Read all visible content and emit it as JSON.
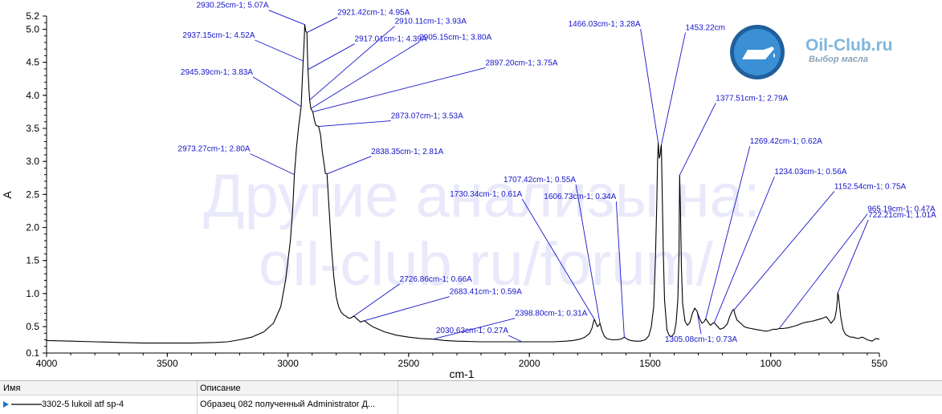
{
  "chart_data": {
    "type": "line",
    "title": "",
    "xlabel": "cm-1",
    "ylabel": "A",
    "xlim": [
      4000,
      550
    ],
    "ylim": [
      0.1,
      5.2
    ],
    "x_reversed": true,
    "x_ticks": [
      4000,
      3500,
      3000,
      2500,
      2000,
      1500,
      1000,
      550
    ],
    "y_ticks": [
      0.1,
      0.5,
      1.0,
      1.5,
      2.0,
      2.5,
      3.0,
      3.5,
      4.0,
      4.5,
      5.0,
      5.2
    ],
    "y_tick_labels": [
      "0.1",
      "0.5",
      "1.0",
      "1.5",
      "2.0",
      "2.5",
      "3.0",
      "3.5",
      "4.0",
      "4.5",
      "5.0",
      "5.2"
    ],
    "grid": false,
    "series": [
      {
        "name": "3302-5 lukoil atf sp-4",
        "color": "#000000",
        "x": [
          4000,
          3900,
          3800,
          3700,
          3600,
          3500,
          3400,
          3300,
          3250,
          3200,
          3150,
          3100,
          3060,
          3030,
          3010,
          2990,
          2980,
          2973.27,
          2965,
          2955,
          2945.39,
          2937.15,
          2933,
          2930.25,
          2926,
          2921.42,
          2919,
          2917.01,
          2913,
          2910.11,
          2907,
          2905.15,
          2900,
          2897.2,
          2890,
          2885,
          2880,
          2873.07,
          2865,
          2858,
          2850,
          2845,
          2838.35,
          2830,
          2820,
          2810,
          2800,
          2790,
          2780,
          2770,
          2760,
          2750,
          2740,
          2726.86,
          2715,
          2700,
          2683.41,
          2670,
          2650,
          2600,
          2550,
          2500,
          2450,
          2398.8,
          2350,
          2300,
          2200,
          2100,
          2030.63,
          1950,
          1900,
          1850,
          1820,
          1790,
          1770,
          1750,
          1740,
          1735,
          1730.34,
          1725,
          1718,
          1712,
          1707.42,
          1700,
          1690,
          1680,
          1660,
          1640,
          1620,
          1606.73,
          1595,
          1580,
          1560,
          1540,
          1520,
          1505,
          1495,
          1485,
          1478,
          1472,
          1469,
          1466.03,
          1462,
          1458,
          1455.5,
          1453.22,
          1450,
          1445,
          1440,
          1430,
          1420,
          1410,
          1400,
          1392,
          1385,
          1380,
          1377.51,
          1374,
          1370,
          1365,
          1355,
          1345,
          1335,
          1325,
          1315,
          1305.08,
          1295,
          1285,
          1275,
          1269.42,
          1262,
          1250,
          1240,
          1234.03,
          1225,
          1210,
          1195,
          1180,
          1170,
          1160,
          1155,
          1152.54,
          1148,
          1140,
          1125,
          1110,
          1095,
          1080,
          1065,
          1050,
          1035,
          1020,
          1005,
          990,
          975,
          965.19,
          950,
          930,
          910,
          890,
          870,
          850,
          830,
          810,
          790,
          770,
          750,
          735,
          728,
          724,
          722.21,
          720,
          716,
          710,
          700,
          690,
          680,
          670,
          660,
          640,
          620,
          600,
          580,
          565,
          550
        ],
        "y": [
          0.29,
          0.28,
          0.27,
          0.26,
          0.25,
          0.25,
          0.25,
          0.26,
          0.27,
          0.3,
          0.34,
          0.42,
          0.55,
          0.8,
          1.2,
          1.8,
          2.3,
          2.8,
          3.2,
          3.55,
          3.83,
          4.52,
          4.8,
          5.07,
          4.97,
          4.95,
          4.6,
          4.39,
          4.1,
          3.93,
          3.85,
          3.8,
          3.77,
          3.75,
          3.62,
          3.55,
          3.54,
          3.53,
          3.4,
          3.15,
          2.95,
          2.82,
          2.81,
          2.3,
          1.7,
          1.25,
          0.95,
          0.8,
          0.72,
          0.68,
          0.66,
          0.63,
          0.63,
          0.66,
          0.62,
          0.57,
          0.59,
          0.55,
          0.5,
          0.42,
          0.37,
          0.34,
          0.32,
          0.31,
          0.29,
          0.28,
          0.27,
          0.27,
          0.27,
          0.27,
          0.27,
          0.28,
          0.29,
          0.31,
          0.34,
          0.4,
          0.48,
          0.56,
          0.61,
          0.56,
          0.5,
          0.52,
          0.55,
          0.45,
          0.36,
          0.32,
          0.3,
          0.3,
          0.31,
          0.34,
          0.31,
          0.29,
          0.28,
          0.28,
          0.3,
          0.36,
          0.5,
          0.8,
          1.5,
          2.4,
          3.0,
          3.28,
          3.05,
          3.1,
          3.2,
          3.25,
          2.6,
          1.6,
          0.9,
          0.45,
          0.36,
          0.35,
          0.4,
          0.55,
          0.9,
          1.6,
          2.79,
          2.3,
          1.4,
          0.85,
          0.58,
          0.52,
          0.56,
          0.7,
          0.78,
          0.73,
          0.62,
          0.55,
          0.58,
          0.62,
          0.58,
          0.52,
          0.55,
          0.56,
          0.52,
          0.46,
          0.48,
          0.54,
          0.65,
          0.73,
          0.76,
          0.75,
          0.68,
          0.6,
          0.55,
          0.5,
          0.48,
          0.47,
          0.46,
          0.45,
          0.44,
          0.43,
          0.44,
          0.46,
          0.46,
          0.47,
          0.47,
          0.48,
          0.5,
          0.52,
          0.55,
          0.57,
          0.58,
          0.6,
          0.62,
          0.65,
          0.55,
          0.62,
          0.75,
          0.9,
          1.01,
          0.98,
          0.85,
          0.65,
          0.45,
          0.38,
          0.36,
          0.34,
          0.34,
          0.32,
          0.34,
          0.3,
          0.28,
          0.32,
          0.31
        ]
      }
    ],
    "annotations": [
      {
        "label": "2930.25cm-1; 5.07A",
        "x": 2930.25,
        "y": 5.07,
        "dx": -45,
        "dy": -18
      },
      {
        "label": "2921.42cm-1; 4.95A",
        "x": 2921.42,
        "y": 4.95,
        "dx": 38,
        "dy": -19
      },
      {
        "label": "2937.15cm-1; 4.52A",
        "x": 2937.15,
        "y": 4.52,
        "dx": -60,
        "dy": -26
      },
      {
        "label": "2917.01cm-1; 4.39A",
        "x": 2917.01,
        "y": 4.39,
        "dx": 58,
        "dy": -32
      },
      {
        "label": "2910.11cm-1; 3.93A",
        "x": 2910.11,
        "y": 3.93,
        "dx": 106,
        "dy": -92
      },
      {
        "label": "2905.15cm-1; 3.80A",
        "x": 2905.15,
        "y": 3.8,
        "dx": 135,
        "dy": -83
      },
      {
        "label": "2897.20cm-1; 3.75A",
        "x": 2897.2,
        "y": 3.75,
        "dx": 215,
        "dy": -55
      },
      {
        "label": "2945.39cm-1; 3.83A",
        "x": 2945.39,
        "y": 3.83,
        "dx": -60,
        "dy": -37
      },
      {
        "label": "2873.07cm-1; 3.53A",
        "x": 2873.07,
        "y": 3.53,
        "dx": 90,
        "dy": -7
      },
      {
        "label": "2973.27cm-1; 2.80A",
        "x": 2973.27,
        "y": 2.8,
        "dx": -55,
        "dy": -26
      },
      {
        "label": "2838.35cm-1; 2.81A",
        "x": 2838.35,
        "y": 2.81,
        "dx": 55,
        "dy": -22
      },
      {
        "label": "2726.86cm-1; 0.66A",
        "x": 2726.86,
        "y": 0.66,
        "dx": 57,
        "dy": -40
      },
      {
        "label": "2683.41cm-1; 0.59A",
        "x": 2683.41,
        "y": 0.59,
        "dx": 106,
        "dy": -30
      },
      {
        "label": "2398.80cm-1; 0.31A",
        "x": 2398.8,
        "y": 0.31,
        "dx": 102,
        "dy": -26
      },
      {
        "label": "2030.63cm-1; 0.27A",
        "x": 2030.63,
        "y": 0.27,
        "dx": -17,
        "dy": -8
      },
      {
        "label": "1730.34cm-1; 0.61A",
        "x": 1730.34,
        "y": 0.61,
        "dx": -90,
        "dy": -150
      },
      {
        "label": "1707.42cm-1; 0.55A",
        "x": 1707.42,
        "y": 0.55,
        "dx": -30,
        "dy": -173
      },
      {
        "label": "1606.73cm-1; 0.34A",
        "x": 1606.73,
        "y": 0.34,
        "dx": -10,
        "dy": -169
      },
      {
        "label": "1466.03cm-1; 3.28A",
        "x": 1466.03,
        "y": 3.28,
        "dx": -22,
        "dy": -142
      },
      {
        "label": "1453.22cm",
        "x": 1453.22,
        "y": 3.25,
        "dx": 30,
        "dy": -140
      },
      {
        "label": "1377.51cm-1; 2.79A",
        "x": 1377.51,
        "y": 2.79,
        "dx": 45,
        "dy": -90
      },
      {
        "label": "1305.08cm-1; 0.73A",
        "x": 1305.08,
        "y": 0.73,
        "dx": 5,
        "dy": 28
      },
      {
        "label": "1269.42cm-1; 0.62A",
        "x": 1269.42,
        "y": 0.62,
        "dx": 55,
        "dy": -215
      },
      {
        "label": "1234.03cm-1; 0.56A",
        "x": 1234.03,
        "y": 0.56,
        "dx": 75,
        "dy": -182
      },
      {
        "label": "1152.54cm-1; 0.75A",
        "x": 1152.54,
        "y": 0.75,
        "dx": 125,
        "dy": -148
      },
      {
        "label": "965.19cm-1; 0.47A",
        "x": 965.19,
        "y": 0.47,
        "dx": 110,
        "dy": -143
      },
      {
        "label": "722.21cm-1; 1.01A",
        "x": 722.21,
        "y": 1.01,
        "dx": 38,
        "dy": -91
      }
    ],
    "watermark_lines": [
      "Другие анализы на:",
      "oil-club.ru/forum/"
    ],
    "logo": {
      "name": "Oil-Club.ru",
      "tagline": "Выбор масла"
    }
  },
  "legend": {
    "columns": [
      "Имя",
      "Описание"
    ],
    "rows": [
      {
        "name": "3302-5 lukoil atf sp-4",
        "description": "Образец 082 полученный Administrator Д..."
      }
    ]
  },
  "colors": {
    "annotation": "#1515c8",
    "line": "#000000",
    "watermark": "#e9e9fb",
    "logo_text": "#7fb6dc"
  }
}
